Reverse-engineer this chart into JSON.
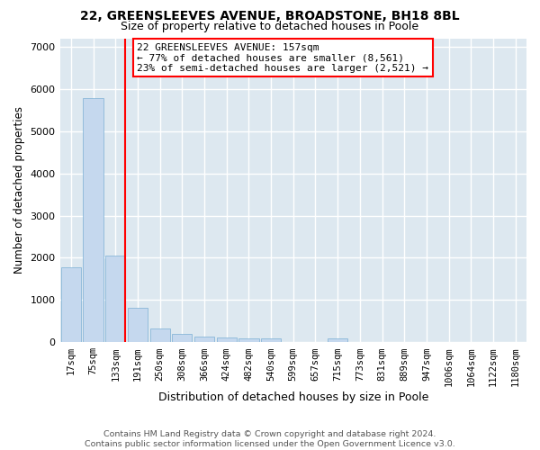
{
  "title1": "22, GREENSLEEVES AVENUE, BROADSTONE, BH18 8BL",
  "title2": "Size of property relative to detached houses in Poole",
  "xlabel": "Distribution of detached houses by size in Poole",
  "ylabel": "Number of detached properties",
  "bar_color": "#c5d8ee",
  "bar_edge_color": "#7aafd4",
  "categories": [
    "17sqm",
    "75sqm",
    "133sqm",
    "191sqm",
    "250sqm",
    "308sqm",
    "366sqm",
    "424sqm",
    "482sqm",
    "540sqm",
    "599sqm",
    "657sqm",
    "715sqm",
    "773sqm",
    "831sqm",
    "889sqm",
    "947sqm",
    "1006sqm",
    "1064sqm",
    "1122sqm",
    "1180sqm"
  ],
  "values": [
    1780,
    5780,
    2060,
    820,
    330,
    190,
    130,
    120,
    100,
    90,
    0,
    0,
    90,
    0,
    0,
    0,
    0,
    0,
    0,
    0,
    0
  ],
  "annotation_text": "22 GREENSLEEVES AVENUE: 157sqm\n← 77% of detached houses are smaller (8,561)\n23% of semi-detached houses are larger (2,521) →",
  "annotation_box_color": "white",
  "annotation_box_edge_color": "red",
  "vline_color": "red",
  "vline_x": 2.44,
  "ylim_max": 7200,
  "background_color": "#dde8f0",
  "grid_color": "white",
  "footer1": "Contains HM Land Registry data © Crown copyright and database right 2024.",
  "footer2": "Contains public sector information licensed under the Open Government Licence v3.0."
}
